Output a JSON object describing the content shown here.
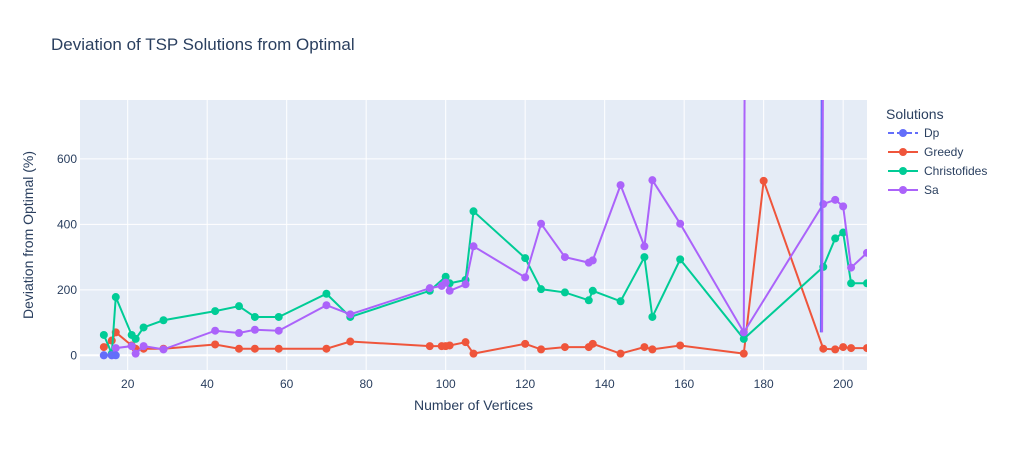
{
  "chart_data": {
    "type": "line",
    "title": "Deviation of TSP Solutions from Optimal",
    "xlabel": "Number of Vertices",
    "ylabel": "Deviation from Optimal (%)",
    "xlim": [
      8,
      206
    ],
    "ylim": [
      -45,
      780
    ],
    "x_ticks": [
      20,
      40,
      60,
      80,
      100,
      120,
      140,
      160,
      180,
      200
    ],
    "y_ticks": [
      0,
      200,
      400,
      600
    ],
    "grid": true,
    "legend": {
      "title": "Solutions",
      "placement": "right"
    },
    "series": [
      {
        "name": "Dp",
        "color": "#636efa",
        "x": [
          14,
          16,
          17
        ],
        "y": [
          0,
          0,
          0
        ]
      },
      {
        "name": "Greedy",
        "color": "#ef553b",
        "x": [
          14,
          16,
          17,
          21,
          22,
          24,
          29,
          42,
          48,
          52,
          58,
          70,
          76,
          96,
          99,
          100,
          101,
          105,
          107,
          120,
          124,
          130,
          136,
          137,
          144,
          150,
          152,
          159,
          175,
          180,
          195,
          198,
          200,
          202,
          206
        ],
        "y": [
          25,
          45,
          70,
          30,
          20,
          20,
          20,
          33,
          20,
          20,
          20,
          20,
          42,
          28,
          28,
          28,
          30,
          40,
          5,
          35,
          18,
          25,
          25,
          35,
          5,
          25,
          18,
          30,
          5,
          533,
          20,
          18,
          25,
          22,
          22
        ]
      },
      {
        "name": "Christofides",
        "color": "#00cc96",
        "x": [
          14,
          16,
          17,
          21,
          22,
          24,
          29,
          42,
          48,
          52,
          58,
          70,
          76,
          96,
          100,
          101,
          105,
          107,
          120,
          124,
          130,
          136,
          137,
          144,
          150,
          152,
          159,
          175,
          195,
          198,
          200,
          202,
          206
        ],
        "y": [
          62,
          5,
          178,
          62,
          50,
          85,
          107,
          135,
          150,
          117,
          117,
          188,
          117,
          197,
          240,
          220,
          230,
          440,
          297,
          202,
          192,
          168,
          197,
          165,
          300,
          117,
          293,
          50,
          270,
          357,
          375,
          220,
          220
        ]
      },
      {
        "name": "Sa",
        "color": "#ab63fa",
        "x": [
          14,
          16,
          17,
          21,
          22,
          24,
          29,
          42,
          48,
          52,
          58,
          70,
          76,
          96,
          99,
          100,
          101,
          105,
          107,
          120,
          124,
          130,
          136,
          137,
          144,
          150,
          152,
          159,
          175,
          195,
          198,
          200,
          202,
          206
        ],
        "y": [
          0,
          0,
          22,
          28,
          5,
          28,
          18,
          75,
          68,
          78,
          75,
          153,
          125,
          205,
          212,
          222,
          197,
          217,
          333,
          238,
          402,
          300,
          283,
          290,
          520,
          333,
          535,
          402,
          70,
          462,
          475,
          455,
          268,
          313
        ]
      }
    ]
  }
}
